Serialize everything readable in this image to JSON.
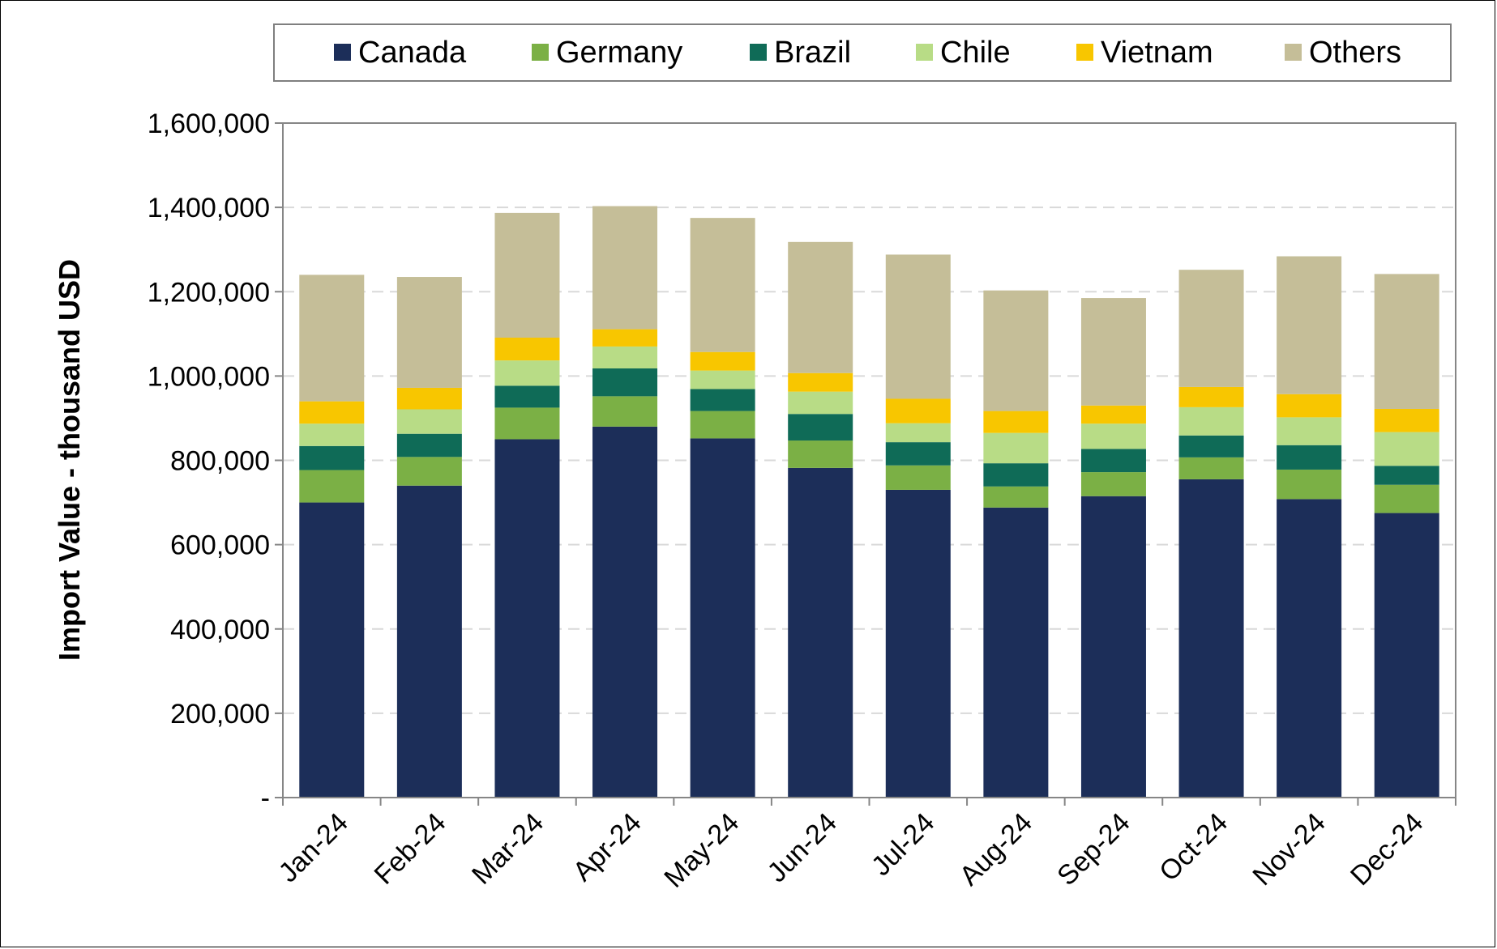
{
  "chart_data": {
    "type": "bar",
    "stacked": true,
    "title": "",
    "xlabel": "",
    "ylabel": "Import Value - thousand USD",
    "ylim": [
      0,
      1600000
    ],
    "yticks": [
      0,
      200000,
      400000,
      600000,
      800000,
      1000000,
      1200000,
      1400000,
      1600000
    ],
    "ytick_labels": [
      "-",
      "200,000",
      "400,000",
      "600,000",
      "800,000",
      "1,000,000",
      "1,200,000",
      "1,400,000",
      "1,600,000"
    ],
    "grid": true,
    "legend_position": "top",
    "categories": [
      "Jan-24",
      "Feb-24",
      "Mar-24",
      "Apr-24",
      "May-24",
      "Jun-24",
      "Jul-24",
      "Aug-24",
      "Sep-24",
      "Oct-24",
      "Nov-24",
      "Dec-24"
    ],
    "series": [
      {
        "name": "Canada",
        "color": "#1c2e59",
        "values": [
          700000,
          740000,
          850000,
          880000,
          852000,
          782000,
          730000,
          688000,
          715000,
          755000,
          708000,
          675000
        ]
      },
      {
        "name": "Germany",
        "color": "#7bb045",
        "values": [
          77000,
          68000,
          75000,
          72000,
          65000,
          65000,
          58000,
          50000,
          57000,
          52000,
          70000,
          67000
        ]
      },
      {
        "name": "Brazil",
        "color": "#0f6b57",
        "values": [
          57000,
          55000,
          52000,
          66000,
          52000,
          63000,
          55000,
          55000,
          55000,
          52000,
          58000,
          45000
        ]
      },
      {
        "name": "Chile",
        "color": "#b8dc86",
        "values": [
          53000,
          58000,
          60000,
          52000,
          44000,
          53000,
          45000,
          72000,
          60000,
          67000,
          66000,
          80000
        ]
      },
      {
        "name": "Vietnam",
        "color": "#f8c600",
        "values": [
          53000,
          51000,
          54000,
          41000,
          44000,
          44000,
          58000,
          52000,
          43000,
          48000,
          55000,
          55000
        ]
      },
      {
        "name": "Others",
        "color": "#c5be98",
        "values": [
          300000,
          263000,
          296000,
          292000,
          318000,
          311000,
          342000,
          286000,
          255000,
          278000,
          327000,
          320000
        ]
      }
    ]
  }
}
